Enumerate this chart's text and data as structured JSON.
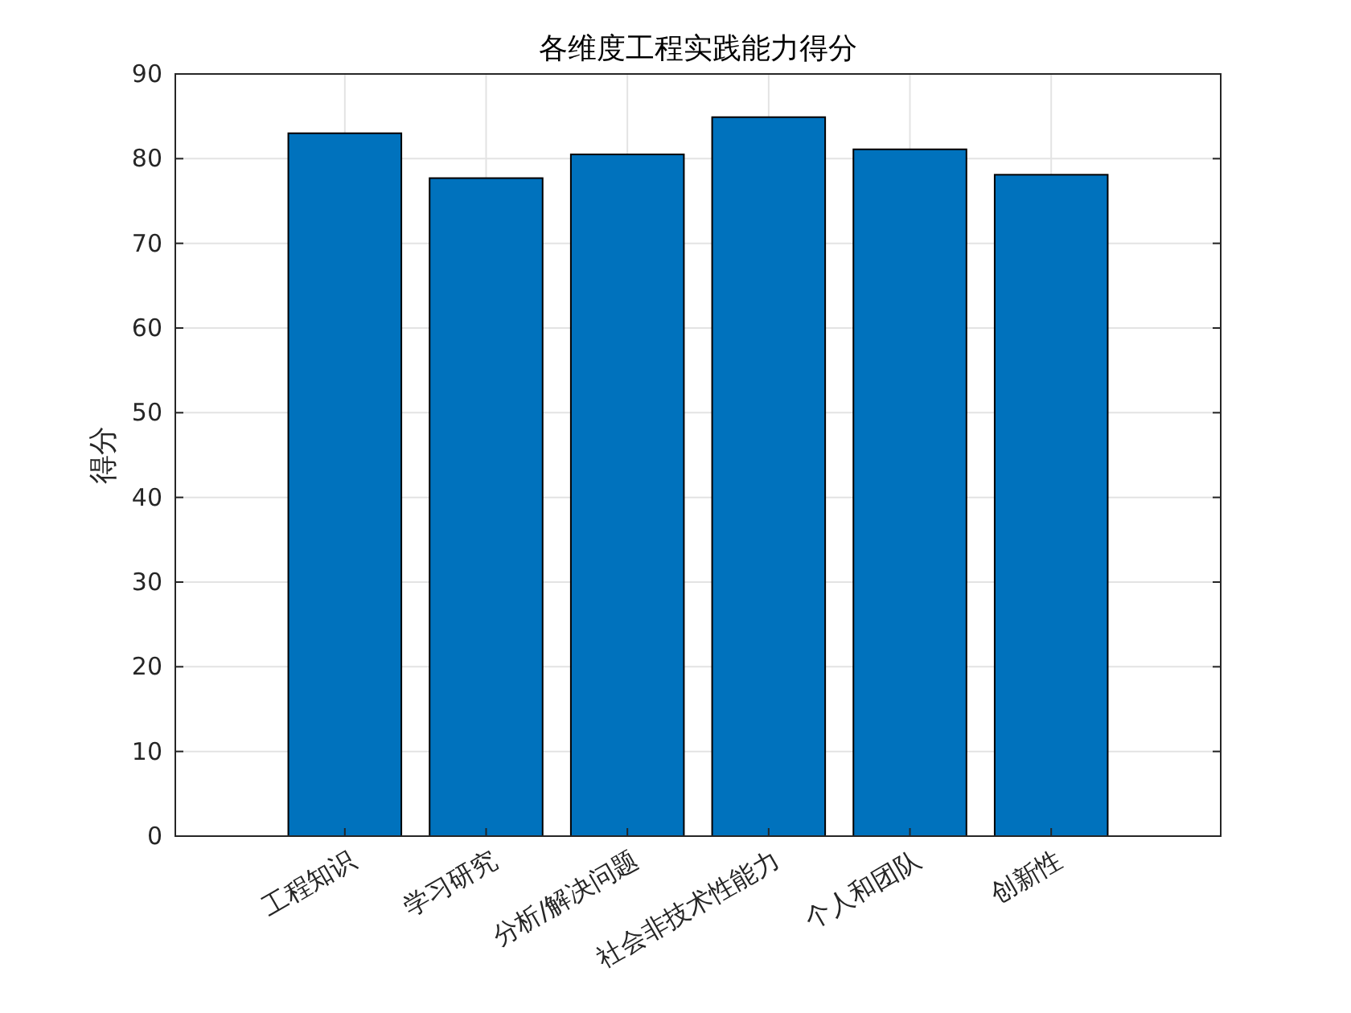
{
  "chart_data": {
    "type": "bar",
    "title": "各维度工程实践能力得分",
    "ylabel": "得分",
    "categories": [
      "工程知识",
      "学习研究",
      "分析/解决问题",
      "社会非技术性能力",
      "个人和团队",
      "创新性"
    ],
    "values": [
      83.0,
      77.7,
      80.5,
      84.9,
      81.1,
      78.1
    ],
    "color": "#0072bd",
    "ylim": [
      0,
      90
    ],
    "yticks": [
      0,
      10,
      20,
      30,
      40,
      50,
      60,
      70,
      80,
      90
    ],
    "grid": true
  }
}
